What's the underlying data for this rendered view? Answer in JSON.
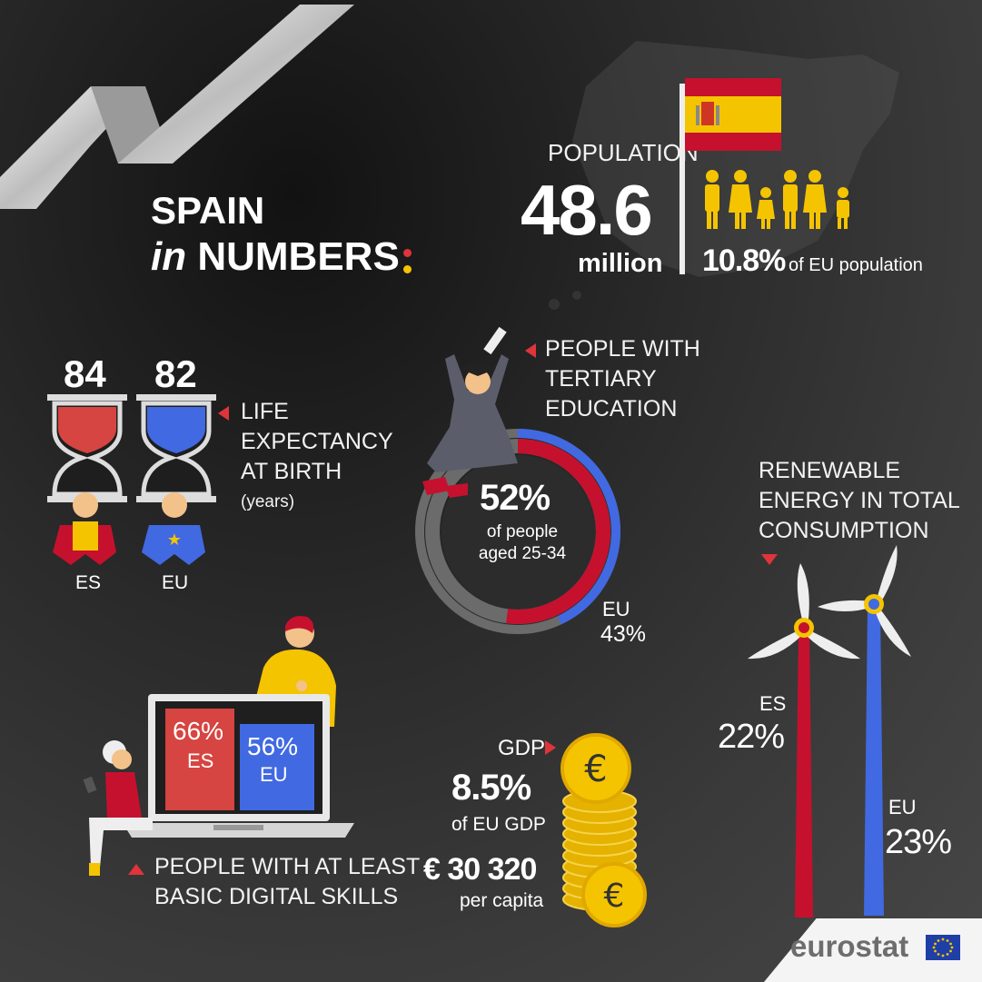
{
  "colors": {
    "accent": "#e0343b",
    "spain_red": "#c5112e",
    "spain_yellow": "#f5c400",
    "eu_blue": "#4169e1"
  },
  "title": {
    "line1": "SPAIN",
    "line2_prefix": "in",
    "line2_main": "NUMBERS"
  },
  "population": {
    "label": "POPULATION",
    "value": "48.6",
    "unit": "million",
    "eu_share": "10.8%",
    "eu_share_label": "of EU population"
  },
  "life_expectancy": {
    "es_value": "84",
    "eu_value": "82",
    "label_lines": [
      "LIFE",
      "EXPECTANCY",
      "AT BIRTH"
    ],
    "unit": "(years)",
    "es_label": "ES",
    "eu_label": "EU"
  },
  "tertiary_education": {
    "label_lines": [
      "PEOPLE WITH",
      "TERTIARY",
      "EDUCATION"
    ],
    "value": "52%",
    "desc_lines": [
      "of people",
      "aged 25-34"
    ],
    "eu_label": "EU",
    "eu_value": "43%",
    "es_fraction": 0.52,
    "eu_fraction": 0.43
  },
  "renewable_energy": {
    "label_lines": [
      "RENEWABLE",
      "ENERGY IN TOTAL",
      "CONSUMPTION"
    ],
    "es_label": "ES",
    "es_value": "22%",
    "eu_label": "EU",
    "eu_value": "23%"
  },
  "digital_skills": {
    "es_value": "66%",
    "es_label": "ES",
    "eu_value": "56%",
    "eu_label": "EU",
    "label_lines": [
      "PEOPLE WITH AT LEAST",
      "BASIC DIGITAL SKILLS"
    ]
  },
  "gdp": {
    "label": "GDP",
    "share": "8.5%",
    "share_label": "of EU GDP",
    "per_capita": "€ 30 320",
    "per_capita_label": "per capita"
  },
  "brand": {
    "name": "eurostat"
  },
  "icons": [
    "spain-flag-icon",
    "family-icon",
    "hourglass-icon",
    "graduate-icon",
    "wind-turbine-icon",
    "laptop-icon",
    "euro-coin-icon",
    "eu-flag-icon"
  ]
}
